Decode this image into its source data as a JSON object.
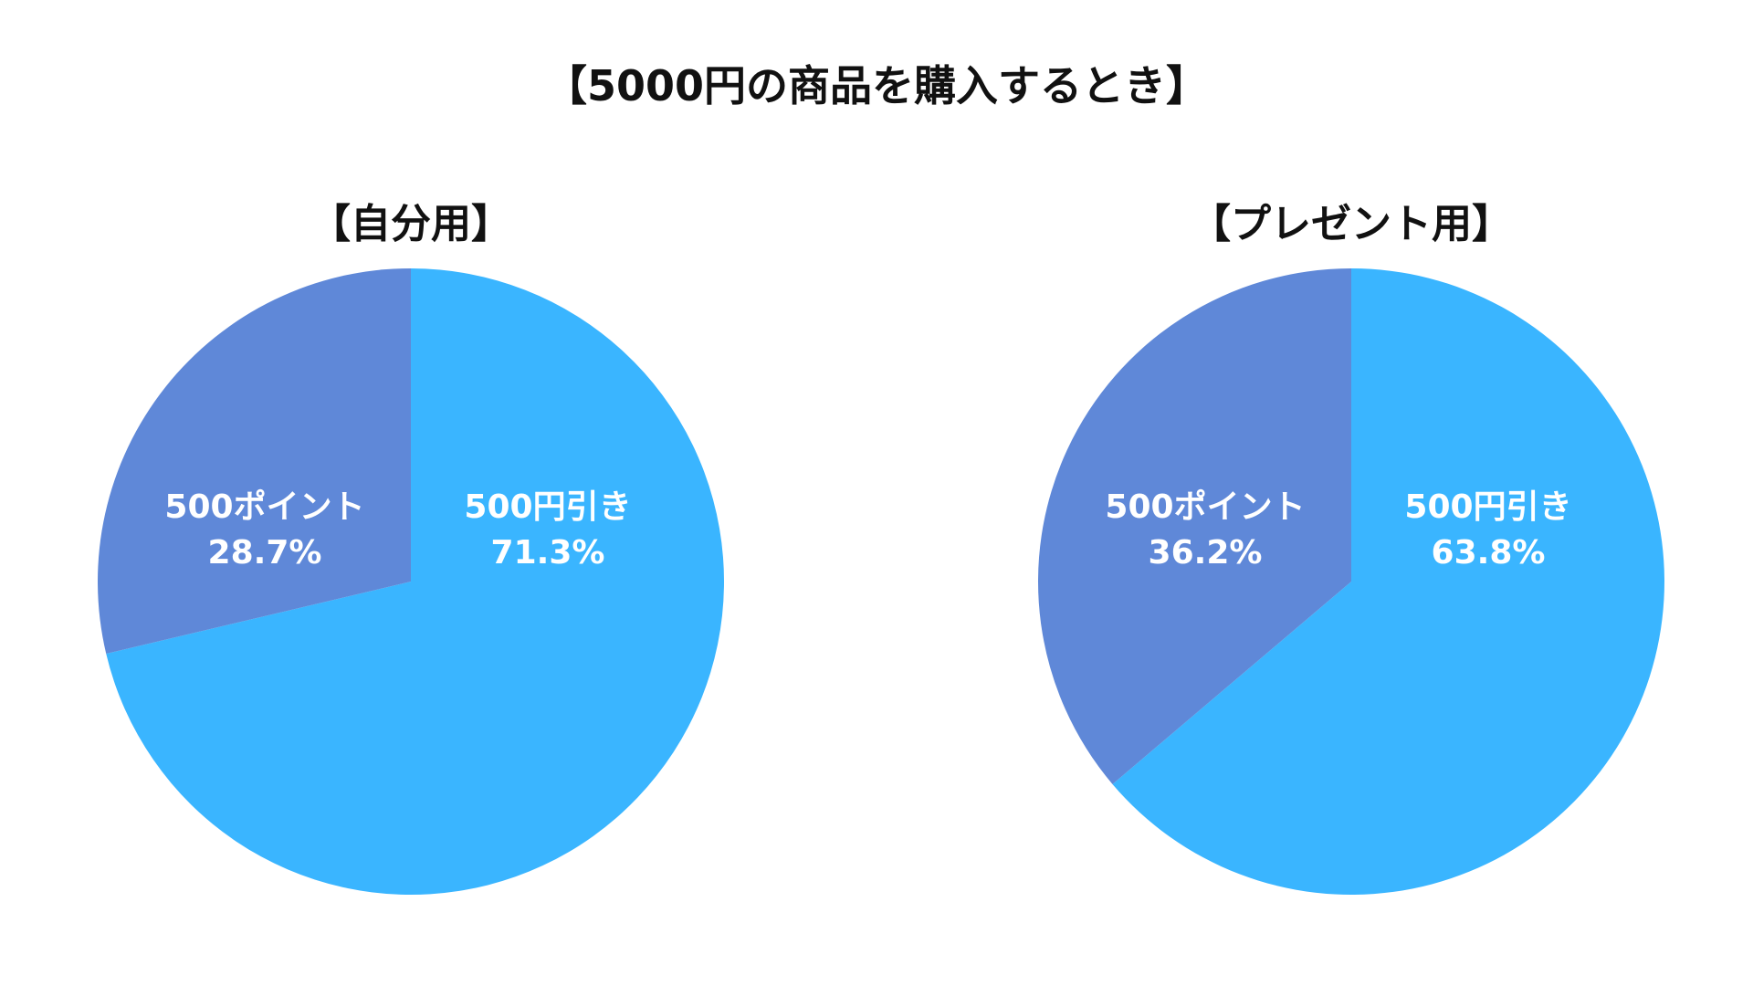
{
  "title": "【5000円の商品を購入するとき】",
  "colors": {
    "discount": "#3AB5FF",
    "points": "#5F88D8",
    "background": "#FFFFFF"
  },
  "chart_data": [
    {
      "type": "pie",
      "title": "【自分用】",
      "slices": [
        {
          "label": "500円引き",
          "value": 71.3,
          "value_label": "71.3%",
          "color": "#3AB5FF"
        },
        {
          "label": "500ポイント",
          "value": 28.7,
          "value_label": "28.7%",
          "color": "#5F88D8"
        }
      ],
      "start": "12 o'clock",
      "direction": "clockwise"
    },
    {
      "type": "pie",
      "title": "【プレゼント用】",
      "slices": [
        {
          "label": "500円引き",
          "value": 63.8,
          "value_label": "63.8%",
          "color": "#3AB5FF"
        },
        {
          "label": "500ポイント",
          "value": 36.2,
          "value_label": "36.2%",
          "color": "#5F88D8"
        }
      ],
      "start": "12 o'clock",
      "direction": "clockwise"
    }
  ]
}
